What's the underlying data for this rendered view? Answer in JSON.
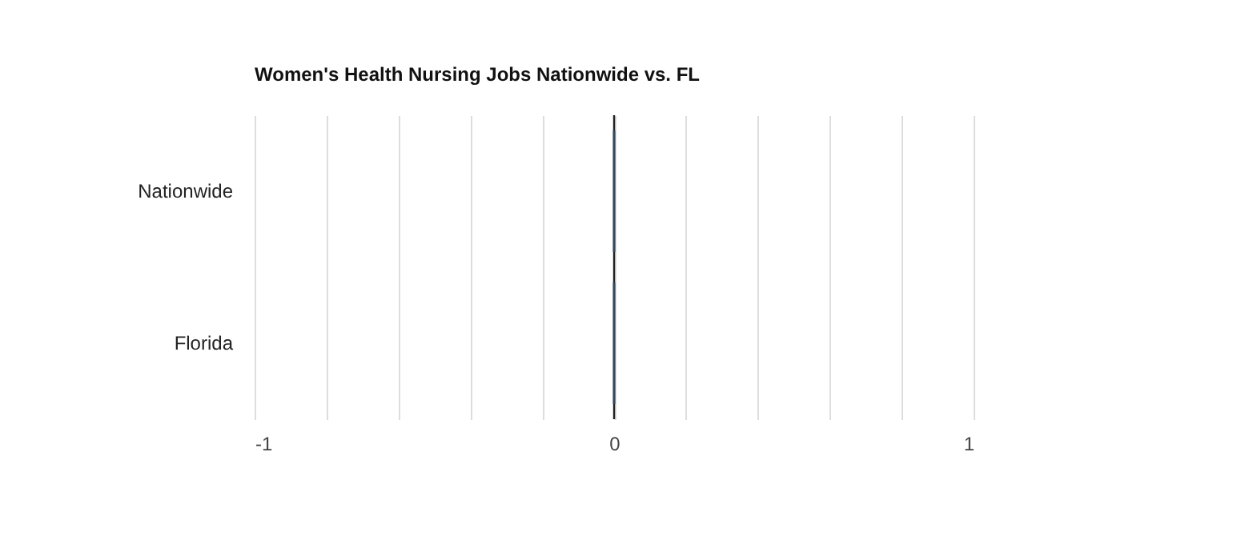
{
  "chart_data": {
    "type": "bar",
    "orientation": "horizontal",
    "title": "Women's Health Nursing Jobs Nationwide vs. FL",
    "categories": [
      "Nationwide",
      "Florida"
    ],
    "values": [
      0,
      0
    ],
    "color": "#34495e",
    "xlim": [
      -1,
      1
    ],
    "xticks": [
      -1,
      {
        "value": -0.8,
        "label": null
      },
      {
        "value": -0.6,
        "label": null
      },
      {
        "value": -0.4,
        "label": null
      },
      {
        "value": -0.2,
        "label": null
      },
      0,
      {
        "value": 0.2,
        "label": null
      },
      {
        "value": 0.4,
        "label": null
      },
      {
        "value": 0.6,
        "label": null
      },
      {
        "value": 0.8,
        "label": null
      },
      1
    ],
    "grid": "x",
    "ref_lines": [
      {
        "axis": "x",
        "value": 0,
        "color": "#222222"
      }
    ]
  }
}
